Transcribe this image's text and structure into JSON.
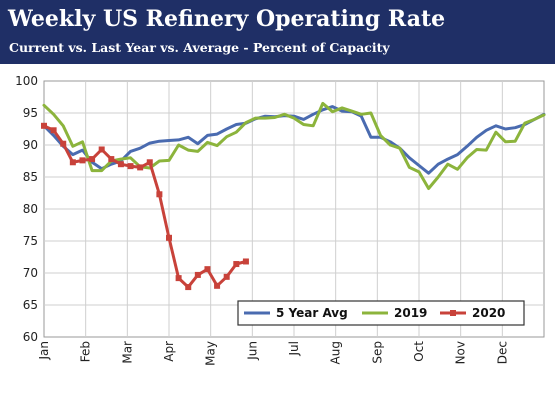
{
  "chart_data": {
    "type": "line",
    "title": "Weekly US Refinery Operating Rate",
    "subtitle": "Current vs. Last Year vs. Average - Percent of Capacity",
    "months": [
      "Jan",
      "Feb",
      "Mar",
      "Apr",
      "May",
      "Jun",
      "Jul",
      "Aug",
      "Sep",
      "Oct",
      "Nov",
      "Dec"
    ],
    "ylim": [
      60,
      100
    ],
    "yticks": [
      60,
      65,
      70,
      75,
      80,
      85,
      90,
      95,
      100
    ],
    "xlim": [
      1,
      53
    ],
    "grid": true,
    "legend_position": "bottom-right",
    "series": [
      {
        "name": "5 Year Avg",
        "color": "#4a6bb0",
        "x": [
          1,
          2,
          3,
          4,
          5,
          6,
          7,
          8,
          9,
          10,
          11,
          12,
          13,
          14,
          15,
          16,
          17,
          18,
          19,
          20,
          21,
          22,
          23,
          24,
          25,
          26,
          27,
          28,
          29,
          30,
          31,
          32,
          33,
          34,
          35,
          36,
          37,
          38,
          39,
          40,
          41,
          42,
          43,
          44,
          45,
          46,
          47,
          48,
          49,
          50,
          51,
          52,
          53
        ],
        "values": [
          93.0,
          91.5,
          89.8,
          88.5,
          89.2,
          87.3,
          86.3,
          87.0,
          87.5,
          89.0,
          89.5,
          90.3,
          90.6,
          90.7,
          90.8,
          91.2,
          90.2,
          91.5,
          91.7,
          92.5,
          93.2,
          93.4,
          94.1,
          94.5,
          94.4,
          94.6,
          94.5,
          94.0,
          94.8,
          95.5,
          96.0,
          95.3,
          95.2,
          94.5,
          91.2,
          91.2,
          90.5,
          89.5,
          88.0,
          86.8,
          85.6,
          87.0,
          87.8,
          88.5,
          89.8,
          91.2,
          92.3,
          93.0,
          92.5,
          92.7,
          93.2,
          94.0,
          94.8
        ]
      },
      {
        "name": "2019",
        "color": "#8cb43c",
        "x": [
          1,
          2,
          3,
          4,
          5,
          6,
          7,
          8,
          9,
          10,
          11,
          12,
          13,
          14,
          15,
          16,
          17,
          18,
          19,
          20,
          21,
          22,
          23,
          24,
          25,
          26,
          27,
          28,
          29,
          30,
          31,
          32,
          33,
          34,
          35,
          36,
          37,
          38,
          39,
          40,
          41,
          42,
          43,
          44,
          45,
          46,
          47,
          48,
          49,
          50,
          51,
          52,
          53
        ],
        "values": [
          96.2,
          94.8,
          93.0,
          89.8,
          90.5,
          86.0,
          86.0,
          87.5,
          87.8,
          88.0,
          86.6,
          86.4,
          87.5,
          87.6,
          90.0,
          89.2,
          89.0,
          90.4,
          89.9,
          91.3,
          92.0,
          93.5,
          94.2,
          94.2,
          94.3,
          94.8,
          94.2,
          93.2,
          93.0,
          96.5,
          95.2,
          95.8,
          95.3,
          94.8,
          95.0,
          91.5,
          90.0,
          89.5,
          86.5,
          85.8,
          83.2,
          85.0,
          87.0,
          86.2,
          88.0,
          89.3,
          89.2,
          92.0,
          90.5,
          90.6,
          93.4,
          94.0,
          94.7
        ]
      },
      {
        "name": "2020",
        "color": "#c8423a",
        "x": [
          1,
          2,
          3,
          4,
          5,
          6,
          7,
          8,
          9,
          10,
          11,
          12,
          13,
          14,
          15,
          16,
          17,
          18,
          19,
          20,
          21,
          22
        ],
        "values": [
          93.0,
          92.3,
          90.2,
          87.3,
          87.6,
          87.8,
          89.3,
          87.8,
          87.0,
          86.7,
          86.5,
          87.3,
          82.3,
          75.5,
          69.2,
          67.8,
          69.7,
          70.6,
          68.0,
          69.4,
          71.4,
          71.8
        ]
      }
    ]
  }
}
